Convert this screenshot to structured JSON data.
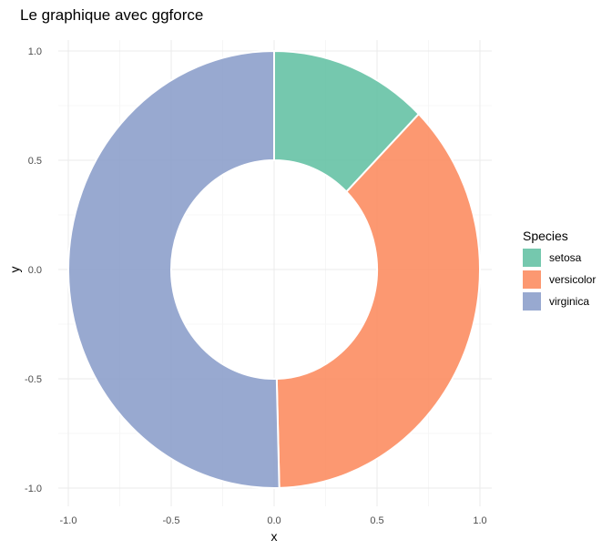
{
  "chart_data": {
    "type": "pie",
    "subtype": "donut",
    "title": "Le graphique avec ggforce",
    "xlabel": "x",
    "ylabel": "y",
    "xlim": [
      -1.0,
      1.0
    ],
    "ylim": [
      -1.0,
      1.0
    ],
    "x_ticks": [
      -1.0,
      -0.5,
      0.0,
      0.5,
      1.0
    ],
    "y_ticks": [
      -1.0,
      -0.5,
      0.0,
      0.5,
      1.0
    ],
    "x_tick_labels": [
      "-1.0",
      "-0.5",
      "0.0",
      "0.5",
      "1.0"
    ],
    "y_tick_labels": [
      "1.0",
      "0.5",
      "0.0",
      "-0.5",
      "-1.0"
    ],
    "inner_radius": 0.5,
    "outer_radius": 1.0,
    "grid": true,
    "legend": {
      "title": "Species",
      "position": "right"
    },
    "slices": [
      {
        "label": "setosa",
        "value": 0.124,
        "color": "#66c2a5"
      },
      {
        "label": "versicolor",
        "value": 0.372,
        "color": "#fc8d62"
      },
      {
        "label": "virginica",
        "value": 0.504,
        "color": "#8da0cb"
      }
    ],
    "slice_opacity": 0.9
  }
}
